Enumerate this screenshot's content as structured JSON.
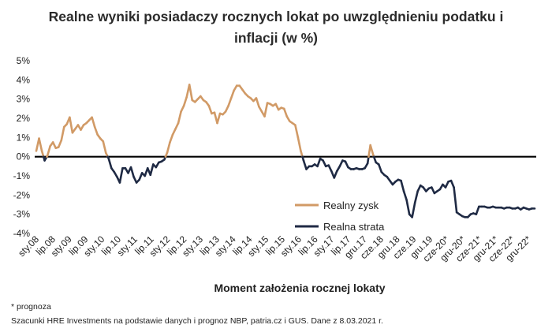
{
  "chart_data": {
    "type": "line",
    "title": "Realne wyniki posiadaczy rocznych lokat po uwzględnieniu podatku i inflacji (w %)",
    "title_line1": "Realne wyniki posiadaczy rocznych lokat po uwzględnieniu podatku i",
    "title_line2": "inflacji (w %)",
    "xlabel": "Moment założenia rocznej lokaty",
    "ylabel": "",
    "ylim": [
      -4,
      5
    ],
    "yticks": [
      5,
      4,
      3,
      2,
      1,
      0,
      -1,
      -2,
      -3,
      -4
    ],
    "ytick_labels": [
      "5%",
      "4%",
      "3%",
      "2%",
      "1%",
      "0%",
      "-1%",
      "-2%",
      "-3%",
      "-4%"
    ],
    "xtick_labels": [
      "sty.08",
      "lip.08",
      "sty.09",
      "lip.09",
      "sty.10",
      "lip.10",
      "sty.11",
      "lip.11",
      "sty.12",
      "lip.12",
      "sty.13",
      "lip.13",
      "sty.14",
      "lip.14",
      "sty.15",
      "lip.15",
      "sty.16",
      "lip.16",
      "sty.17",
      "lip.17",
      "gru.17",
      "cze.18",
      "gru.18",
      "cze.19",
      "gru.19",
      "cze-20*",
      "gru-20*",
      "cze-21*",
      "gru-21*",
      "cze-22*",
      "gru-22*"
    ],
    "grid": false,
    "legend_position": "lower-center",
    "colors": {
      "positive": "#D19A66",
      "negative": "#1F2A44",
      "zero_line": "#000000"
    },
    "series": [
      {
        "name": "Realny zysk",
        "x": [
          "2008-01",
          "2008-02",
          "2008-03",
          "2008-04",
          "2008-05",
          "2008-06",
          "2008-07",
          "2008-08",
          "2008-09",
          "2008-10",
          "2008-11",
          "2008-12",
          "2009-01",
          "2009-02",
          "2009-03",
          "2009-04",
          "2009-05",
          "2009-06",
          "2009-07",
          "2009-08",
          "2009-09",
          "2009-10",
          "2009-11",
          "2009-12",
          "2010-01",
          "2010-02",
          "2010-03",
          "2010-04",
          "2010-05",
          "2010-06",
          "2010-07",
          "2010-08",
          "2010-09",
          "2010-10",
          "2010-11",
          "2010-12",
          "2011-01",
          "2011-02",
          "2011-03",
          "2011-04",
          "2011-05",
          "2011-06",
          "2011-07",
          "2011-08",
          "2011-09",
          "2011-10",
          "2011-11",
          "2011-12",
          "2012-01",
          "2012-02",
          "2012-03",
          "2012-04",
          "2012-05",
          "2012-06",
          "2012-07",
          "2012-08",
          "2012-09",
          "2012-10",
          "2012-11",
          "2012-12",
          "2013-01",
          "2013-02",
          "2013-03",
          "2013-04",
          "2013-05",
          "2013-06",
          "2013-07",
          "2013-08",
          "2013-09",
          "2013-10",
          "2013-11",
          "2013-12",
          "2014-01",
          "2014-02",
          "2014-03",
          "2014-04",
          "2014-05",
          "2014-06",
          "2014-07",
          "2014-08",
          "2014-09",
          "2014-10",
          "2014-11",
          "2014-12",
          "2015-01",
          "2015-02",
          "2015-03",
          "2015-04",
          "2015-05",
          "2015-06",
          "2015-07",
          "2015-08",
          "2015-09",
          "2015-10",
          "2015-11",
          "2015-12",
          "2016-01",
          "2016-02",
          "2016-03",
          "2016-04",
          "2016-05",
          "2016-06",
          "2016-07",
          "2016-08",
          "2016-09",
          "2016-10",
          "2016-11",
          "2016-12",
          "2017-01",
          "2017-02",
          "2017-03",
          "2017-04",
          "2017-05",
          "2017-06",
          "2017-07",
          "2017-08",
          "2017-09",
          "2017-10",
          "2017-11",
          "2017-12",
          "2018-01",
          "2018-02",
          "2018-03",
          "2018-04",
          "2018-05",
          "2018-06",
          "2018-07",
          "2018-08",
          "2018-09",
          "2018-10",
          "2018-11",
          "2018-12",
          "2019-01",
          "2019-02",
          "2019-03",
          "2019-04",
          "2019-05",
          "2019-06",
          "2019-07",
          "2019-08",
          "2019-09",
          "2019-10",
          "2019-11",
          "2019-12",
          "2020-01",
          "2020-02",
          "2020-03",
          "2020-04",
          "2020-05",
          "2020-06",
          "2020-07",
          "2020-08",
          "2020-09",
          "2020-10",
          "2020-11",
          "2020-12",
          "2021-01",
          "2021-02",
          "2021-03",
          "2021-04",
          "2021-05",
          "2021-06",
          "2021-07",
          "2021-08",
          "2021-09",
          "2021-10",
          "2021-11",
          "2021-12",
          "2022-01",
          "2022-02",
          "2022-03",
          "2022-04",
          "2022-05",
          "2022-06",
          "2022-07",
          "2022-08",
          "2022-09",
          "2022-10",
          "2022-11",
          "2022-12"
        ],
        "values": [
          0.3,
          0.95,
          0.3,
          -0.2,
          0.05,
          0.55,
          0.75,
          0.45,
          0.5,
          0.85,
          1.55,
          1.7,
          2.05,
          1.25,
          1.45,
          1.65,
          1.4,
          1.65,
          1.75,
          1.9,
          2.05,
          1.55,
          1.15,
          0.95,
          0.8,
          0.2,
          -0.1,
          -0.6,
          -0.8,
          -1.05,
          -1.35,
          -0.6,
          -0.6,
          -0.85,
          -0.55,
          -1.05,
          -1.35,
          -1.2,
          -0.85,
          -1.0,
          -0.6,
          -0.95,
          -0.4,
          -0.55,
          -0.3,
          -0.25,
          -0.15,
          0.2,
          0.75,
          1.15,
          1.45,
          1.75,
          2.35,
          2.65,
          3.1,
          3.75,
          2.95,
          2.85,
          3.0,
          3.15,
          2.95,
          2.85,
          2.65,
          2.25,
          2.3,
          1.75,
          2.25,
          2.2,
          2.35,
          2.65,
          3.05,
          3.45,
          3.7,
          3.7,
          3.5,
          3.3,
          3.15,
          3.05,
          2.9,
          3.05,
          2.6,
          2.35,
          2.1,
          2.8,
          2.75,
          2.65,
          2.75,
          2.45,
          2.55,
          2.5,
          2.1,
          1.85,
          1.75,
          1.65,
          1.0,
          0.3,
          -0.2,
          -0.65,
          -0.5,
          -0.5,
          -0.4,
          -0.5,
          -0.1,
          -0.2,
          -0.5,
          -0.45,
          -0.75,
          -1.1,
          -0.75,
          -0.5,
          -0.2,
          -0.25,
          -0.55,
          -0.65,
          -0.65,
          -0.6,
          -0.65,
          -0.65,
          -0.6,
          -0.35,
          0.6,
          0.1,
          -0.3,
          -0.4,
          -0.8,
          -0.95,
          -1.05,
          -1.25,
          -1.45,
          -1.3,
          -1.2,
          -1.25,
          -1.8,
          -2.25,
          -3.0,
          -3.15,
          -2.4,
          -1.8,
          -1.5,
          -1.6,
          -1.8,
          -1.65,
          -1.6,
          -1.9,
          -1.8,
          -1.7,
          -1.45,
          -1.6,
          -1.3,
          -1.25,
          -1.6,
          -2.9,
          -3.0,
          -3.1,
          -3.15,
          -3.15,
          -3.0,
          -2.95,
          -3.0,
          -2.6,
          -2.6,
          -2.6,
          -2.65,
          -2.65,
          -2.6,
          -2.65,
          -2.65,
          -2.65,
          -2.7,
          -2.65,
          -2.65,
          -2.7,
          -2.7,
          -2.65,
          -2.75,
          -2.65,
          -2.7,
          -2.75,
          -2.7,
          -2.7
        ]
      }
    ],
    "legend": [
      {
        "label": "Realny zysk",
        "color": "#D19A66"
      },
      {
        "label": "Realna strata",
        "color": "#1F2A44"
      }
    ]
  },
  "footnotes": {
    "note": "* prognoza",
    "source": "Szacunki HRE Investments na podstawie danych i prognoz NBP,  patria.cz  i GUS. Dane z 8.03.2021 r."
  }
}
